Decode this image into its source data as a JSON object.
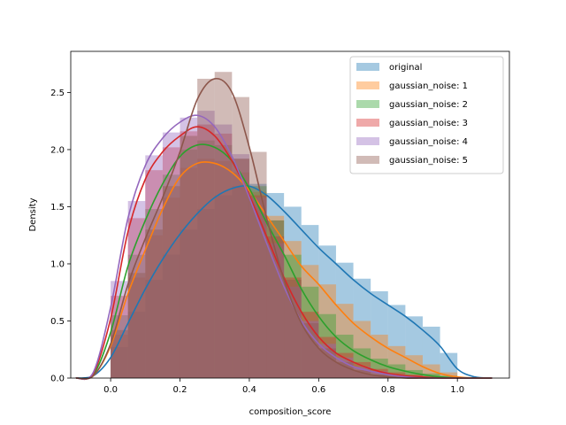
{
  "chart_data": {
    "type": "histogram_kde",
    "xlabel": "composition_score",
    "ylabel": "Density",
    "xlim": [
      -0.115,
      1.15
    ],
    "ylim": [
      0,
      2.86
    ],
    "xticks": [
      0.0,
      0.2,
      0.4,
      0.6,
      0.8,
      1.0
    ],
    "yticks": [
      0.0,
      0.5,
      1.0,
      1.5,
      2.0,
      2.5
    ],
    "legend_position": "top-right",
    "grid": false,
    "series": [
      {
        "name": "original",
        "color": "#1f77b4",
        "kde_x": [
          -0.1,
          -0.05,
          0.0,
          0.05,
          0.1,
          0.15,
          0.2,
          0.25,
          0.3,
          0.35,
          0.4,
          0.45,
          0.5,
          0.55,
          0.6,
          0.65,
          0.7,
          0.75,
          0.8,
          0.85,
          0.9,
          0.95,
          1.0,
          1.05,
          1.1
        ],
        "kde_y": [
          0.0,
          0.02,
          0.18,
          0.48,
          0.78,
          1.04,
          1.26,
          1.44,
          1.58,
          1.66,
          1.68,
          1.6,
          1.46,
          1.3,
          1.14,
          1.0,
          0.86,
          0.74,
          0.64,
          0.54,
          0.42,
          0.28,
          0.08,
          0.01,
          0.0
        ],
        "hist": [
          [
            0.0,
            0.27
          ],
          [
            0.05,
            0.58
          ],
          [
            0.1,
            0.86
          ],
          [
            0.15,
            1.08
          ],
          [
            0.2,
            1.3
          ],
          [
            0.25,
            1.48
          ],
          [
            0.3,
            1.6
          ],
          [
            0.35,
            1.68
          ],
          [
            0.4,
            1.7
          ],
          [
            0.45,
            1.62
          ],
          [
            0.5,
            1.5
          ],
          [
            0.55,
            1.34
          ],
          [
            0.6,
            1.16
          ],
          [
            0.65,
            1.01
          ],
          [
            0.7,
            0.87
          ],
          [
            0.75,
            0.76
          ],
          [
            0.8,
            0.64
          ],
          [
            0.85,
            0.54
          ],
          [
            0.9,
            0.45
          ],
          [
            0.95,
            0.22
          ]
        ]
      },
      {
        "name": "gaussian_noise: 1",
        "color": "#ff7f0e",
        "kde_x": [
          -0.1,
          -0.05,
          0.0,
          0.05,
          0.1,
          0.15,
          0.2,
          0.25,
          0.3,
          0.35,
          0.4,
          0.45,
          0.5,
          0.55,
          0.6,
          0.65,
          0.7,
          0.75,
          0.8,
          0.85,
          0.9,
          0.95,
          1.0,
          1.05,
          1.1
        ],
        "kde_y": [
          0.0,
          0.02,
          0.28,
          0.74,
          1.12,
          1.48,
          1.76,
          1.88,
          1.88,
          1.8,
          1.64,
          1.42,
          1.2,
          0.98,
          0.82,
          0.64,
          0.48,
          0.36,
          0.26,
          0.18,
          0.1,
          0.04,
          0.01,
          0.0,
          0.0
        ],
        "hist": [
          [
            0.0,
            0.38
          ],
          [
            0.05,
            0.88
          ],
          [
            0.1,
            1.25
          ],
          [
            0.15,
            1.58
          ],
          [
            0.2,
            1.84
          ],
          [
            0.25,
            1.92
          ],
          [
            0.3,
            1.9
          ],
          [
            0.35,
            1.8
          ],
          [
            0.4,
            1.63
          ],
          [
            0.45,
            1.42
          ],
          [
            0.5,
            1.2
          ],
          [
            0.55,
            0.99
          ],
          [
            0.6,
            0.82
          ],
          [
            0.65,
            0.65
          ],
          [
            0.7,
            0.5
          ],
          [
            0.75,
            0.38
          ],
          [
            0.8,
            0.28
          ],
          [
            0.85,
            0.2
          ],
          [
            0.9,
            0.12
          ],
          [
            0.95,
            0.05
          ]
        ]
      },
      {
        "name": "gaussian_noise: 2",
        "color": "#2ca02c",
        "kde_x": [
          -0.1,
          -0.05,
          0.0,
          0.05,
          0.1,
          0.15,
          0.2,
          0.25,
          0.3,
          0.35,
          0.4,
          0.45,
          0.5,
          0.55,
          0.6,
          0.65,
          0.7,
          0.75,
          0.8,
          0.85,
          0.9,
          0.95,
          1.0,
          1.05,
          1.1
        ],
        "kde_y": [
          0.0,
          0.03,
          0.4,
          0.98,
          1.38,
          1.7,
          1.94,
          2.04,
          2.02,
          1.9,
          1.66,
          1.36,
          1.08,
          0.78,
          0.54,
          0.36,
          0.24,
          0.16,
          0.1,
          0.06,
          0.03,
          0.01,
          0.0,
          0.0,
          0.0
        ],
        "hist": [
          [
            0.0,
            0.55
          ],
          [
            0.05,
            1.08
          ],
          [
            0.1,
            1.48
          ],
          [
            0.15,
            1.78
          ],
          [
            0.2,
            2.0
          ],
          [
            0.25,
            2.08
          ],
          [
            0.3,
            2.04
          ],
          [
            0.35,
            1.92
          ],
          [
            0.4,
            1.68
          ],
          [
            0.45,
            1.38
          ],
          [
            0.5,
            1.08
          ],
          [
            0.55,
            0.8
          ],
          [
            0.6,
            0.56
          ],
          [
            0.65,
            0.38
          ],
          [
            0.7,
            0.26
          ],
          [
            0.75,
            0.17
          ],
          [
            0.8,
            0.12
          ],
          [
            0.85,
            0.07
          ],
          [
            0.9,
            0.04
          ],
          [
            0.95,
            0.02
          ]
        ]
      },
      {
        "name": "gaussian_noise: 3",
        "color": "#d62728",
        "kde_x": [
          -0.1,
          -0.05,
          0.0,
          0.05,
          0.1,
          0.15,
          0.2,
          0.25,
          0.3,
          0.35,
          0.4,
          0.45,
          0.5,
          0.55,
          0.6,
          0.65,
          0.7,
          0.75,
          0.8,
          0.85,
          0.9,
          0.95,
          1.0,
          1.05,
          1.1
        ],
        "kde_y": [
          0.0,
          0.04,
          0.52,
          1.28,
          1.74,
          1.98,
          2.12,
          2.2,
          2.12,
          1.9,
          1.6,
          1.24,
          0.88,
          0.58,
          0.36,
          0.22,
          0.14,
          0.08,
          0.04,
          0.02,
          0.01,
          0.0,
          0.0,
          0.0,
          0.0
        ],
        "hist": [
          [
            0.0,
            0.72
          ],
          [
            0.05,
            1.4
          ],
          [
            0.1,
            1.82
          ],
          [
            0.15,
            2.02
          ],
          [
            0.2,
            2.16
          ],
          [
            0.25,
            2.22
          ],
          [
            0.3,
            2.14
          ],
          [
            0.35,
            1.92
          ],
          [
            0.4,
            1.6
          ],
          [
            0.45,
            1.24
          ],
          [
            0.5,
            0.88
          ],
          [
            0.55,
            0.58
          ],
          [
            0.6,
            0.36
          ],
          [
            0.65,
            0.22
          ],
          [
            0.7,
            0.14
          ],
          [
            0.75,
            0.08
          ],
          [
            0.8,
            0.05
          ],
          [
            0.85,
            0.03
          ],
          [
            0.9,
            0.01
          ],
          [
            0.95,
            0.01
          ]
        ]
      },
      {
        "name": "gaussian_noise: 4",
        "color": "#9467bd",
        "kde_x": [
          -0.1,
          -0.05,
          0.0,
          0.05,
          0.1,
          0.15,
          0.2,
          0.25,
          0.3,
          0.35,
          0.4,
          0.45,
          0.5,
          0.55,
          0.6,
          0.65,
          0.7,
          0.75,
          0.8,
          0.85,
          0.9,
          0.95,
          1.0,
          1.05,
          1.1
        ],
        "kde_y": [
          0.0,
          0.05,
          0.62,
          1.4,
          1.86,
          2.1,
          2.24,
          2.3,
          2.2,
          1.94,
          1.58,
          1.18,
          0.8,
          0.5,
          0.3,
          0.18,
          0.1,
          0.06,
          0.03,
          0.01,
          0.0,
          0.0,
          0.0,
          0.0,
          0.0
        ],
        "hist": [
          [
            0.0,
            0.85
          ],
          [
            0.05,
            1.55
          ],
          [
            0.1,
            1.95
          ],
          [
            0.15,
            2.15
          ],
          [
            0.2,
            2.28
          ],
          [
            0.25,
            2.34
          ],
          [
            0.3,
            2.22
          ],
          [
            0.35,
            1.96
          ],
          [
            0.4,
            1.58
          ],
          [
            0.45,
            1.18
          ],
          [
            0.5,
            0.8
          ],
          [
            0.55,
            0.5
          ],
          [
            0.6,
            0.3
          ],
          [
            0.65,
            0.18
          ],
          [
            0.7,
            0.1
          ],
          [
            0.75,
            0.06
          ],
          [
            0.8,
            0.03
          ],
          [
            0.85,
            0.02
          ],
          [
            0.9,
            0.01
          ],
          [
            0.95,
            0.0
          ]
        ]
      },
      {
        "name": "gaussian_noise: 5",
        "color": "#8c564b",
        "kde_x": [
          -0.1,
          -0.05,
          0.0,
          0.05,
          0.1,
          0.15,
          0.2,
          0.25,
          0.3,
          0.35,
          0.4,
          0.45,
          0.5,
          0.55,
          0.6,
          0.65,
          0.7,
          0.75,
          0.8,
          0.85,
          0.9,
          0.95,
          1.0,
          1.05,
          1.1
        ],
        "kde_y": [
          0.0,
          0.02,
          0.3,
          0.82,
          1.22,
          1.58,
          1.98,
          2.44,
          2.62,
          2.5,
          2.02,
          1.4,
          0.86,
          0.48,
          0.26,
          0.14,
          0.07,
          0.03,
          0.01,
          0.0,
          0.0,
          0.0,
          0.0,
          0.0,
          0.0
        ],
        "hist": [
          [
            0.0,
            0.42
          ],
          [
            0.05,
            0.92
          ],
          [
            0.1,
            1.3
          ],
          [
            0.15,
            1.68
          ],
          [
            0.2,
            2.12
          ],
          [
            0.25,
            2.62
          ],
          [
            0.3,
            2.68
          ],
          [
            0.35,
            2.46
          ],
          [
            0.4,
            1.98
          ],
          [
            0.45,
            1.38
          ],
          [
            0.5,
            0.86
          ],
          [
            0.55,
            0.48
          ],
          [
            0.6,
            0.26
          ],
          [
            0.65,
            0.14
          ],
          [
            0.7,
            0.07
          ],
          [
            0.75,
            0.03
          ],
          [
            0.8,
            0.02
          ],
          [
            0.85,
            0.01
          ],
          [
            0.9,
            0.0
          ],
          [
            0.95,
            0.0
          ]
        ]
      }
    ]
  }
}
